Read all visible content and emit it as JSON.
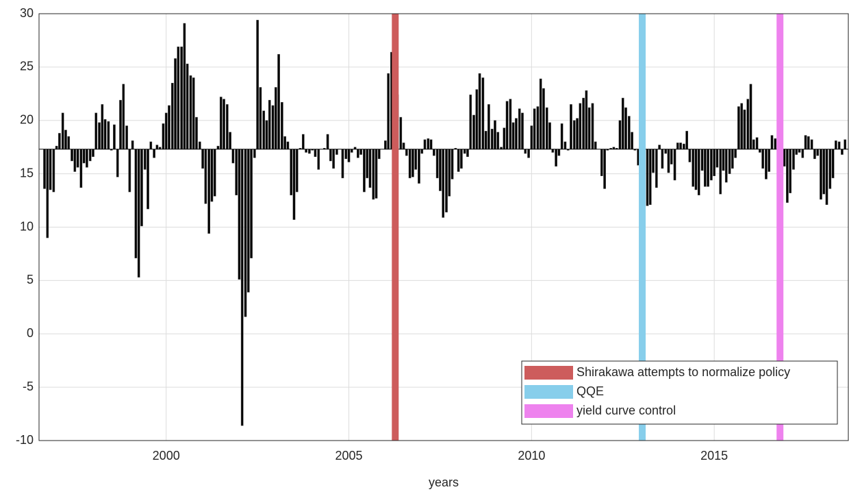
{
  "chart_data": {
    "type": "bar",
    "xlabel": "years",
    "color": "#000000",
    "baseline": 17.3,
    "xlim": [
      1996.52,
      2018.67
    ],
    "xticks": [
      2000,
      2005,
      2010,
      2015
    ],
    "ylim": [
      -10,
      30
    ],
    "yticks": [
      -10,
      -5,
      0,
      5,
      10,
      15,
      20,
      25,
      30
    ],
    "grid": true,
    "legend": "lower right",
    "bands": [
      {
        "name": "Shirakawa attempts to normalize policy",
        "color": "#cd5c5c",
        "x": 2006.27
      },
      {
        "name": "QQE",
        "color": "#87ceeb",
        "x": 2013.03
      },
      {
        "name": "yield curve control",
        "color": "#ee82ee",
        "x": 2016.8
      }
    ],
    "x": [
      1996.67,
      1996.75,
      1996.83,
      1996.92,
      1997,
      1997.08,
      1997.17,
      1997.25,
      1997.33,
      1997.42,
      1997.5,
      1997.58,
      1997.67,
      1997.75,
      1997.83,
      1997.92,
      1998,
      1998.08,
      1998.17,
      1998.25,
      1998.33,
      1998.42,
      1998.5,
      1998.58,
      1998.67,
      1998.75,
      1998.83,
      1998.92,
      1999,
      1999.08,
      1999.17,
      1999.25,
      1999.33,
      1999.42,
      1999.5,
      1999.58,
      1999.67,
      1999.75,
      1999.83,
      1999.92,
      2000,
      2000.08,
      2000.17,
      2000.25,
      2000.33,
      2000.42,
      2000.5,
      2000.58,
      2000.67,
      2000.75,
      2000.83,
      2000.92,
      2001,
      2001.08,
      2001.17,
      2001.25,
      2001.33,
      2001.42,
      2001.5,
      2001.58,
      2001.67,
      2001.75,
      2001.83,
      2001.92,
      2002,
      2002.08,
      2002.17,
      2002.25,
      2002.33,
      2002.42,
      2002.5,
      2002.58,
      2002.67,
      2002.75,
      2002.83,
      2002.92,
      2003,
      2003.08,
      2003.17,
      2003.25,
      2003.33,
      2003.42,
      2003.5,
      2003.58,
      2003.67,
      2003.75,
      2003.83,
      2003.92,
      2004,
      2004.08,
      2004.17,
      2004.25,
      2004.33,
      2004.42,
      2004.5,
      2004.58,
      2004.67,
      2004.75,
      2004.83,
      2004.92,
      2005,
      2005.08,
      2005.17,
      2005.25,
      2005.33,
      2005.42,
      2005.5,
      2005.58,
      2005.67,
      2005.75,
      2005.83,
      2005.92,
      2006,
      2006.08,
      2006.17,
      2006.25,
      2006.33,
      2006.42,
      2006.5,
      2006.58,
      2006.67,
      2006.75,
      2006.83,
      2006.92,
      2007,
      2007.08,
      2007.17,
      2007.25,
      2007.33,
      2007.42,
      2007.5,
      2007.58,
      2007.67,
      2007.75,
      2007.83,
      2007.92,
      2008,
      2008.08,
      2008.17,
      2008.25,
      2008.33,
      2008.42,
      2008.5,
      2008.58,
      2008.67,
      2008.75,
      2008.83,
      2008.92,
      2009,
      2009.08,
      2009.17,
      2009.25,
      2009.33,
      2009.42,
      2009.5,
      2009.58,
      2009.67,
      2009.75,
      2009.83,
      2009.92,
      2010,
      2010.08,
      2010.17,
      2010.25,
      2010.33,
      2010.42,
      2010.5,
      2010.58,
      2010.67,
      2010.75,
      2010.83,
      2010.92,
      2011,
      2011.08,
      2011.17,
      2011.25,
      2011.33,
      2011.42,
      2011.5,
      2011.58,
      2011.67,
      2011.75,
      2011.83,
      2011.92,
      2012,
      2012.08,
      2012.17,
      2012.25,
      2012.33,
      2012.42,
      2012.5,
      2012.58,
      2012.67,
      2012.75,
      2012.83,
      2012.92,
      2013,
      2013.08,
      2013.17,
      2013.25,
      2013.33,
      2013.42,
      2013.5,
      2013.58,
      2013.67,
      2013.75,
      2013.83,
      2013.92,
      2014,
      2014.08,
      2014.17,
      2014.25,
      2014.33,
      2014.42,
      2014.5,
      2014.58,
      2014.67,
      2014.75,
      2014.83,
      2014.92,
      2015,
      2015.08,
      2015.17,
      2015.25,
      2015.33,
      2015.42,
      2015.5,
      2015.58,
      2015.67,
      2015.75,
      2015.83,
      2015.92,
      2016,
      2016.08,
      2016.17,
      2016.25,
      2016.33,
      2016.42,
      2016.5,
      2016.58,
      2016.67,
      2016.75,
      2016.83,
      2016.92,
      2017,
      2017.08,
      2017.17,
      2017.25,
      2017.33,
      2017.42,
      2017.5,
      2017.58,
      2017.67,
      2017.75,
      2017.83,
      2017.92,
      2018,
      2018.08,
      2018.17,
      2018.25,
      2018.33,
      2018.42,
      2018.5,
      2018.58
    ],
    "values": [
      13.6,
      9.0,
      13.5,
      13.3,
      17.6,
      18.8,
      20.7,
      19.1,
      18.5,
      16.2,
      15.2,
      15.6,
      13.7,
      16.0,
      15.6,
      16.2,
      16.6,
      20.7,
      19.8,
      21.5,
      20.1,
      19.9,
      17.2,
      19.6,
      14.7,
      21.9,
      23.4,
      19.5,
      13.3,
      18.1,
      7.1,
      5.3,
      10.1,
      15.4,
      11.7,
      18.0,
      16.5,
      17.7,
      17.5,
      19.7,
      20.7,
      21.4,
      23.5,
      25.8,
      26.9,
      26.9,
      29.1,
      25.3,
      24.2,
      24.0,
      20.3,
      18.0,
      15.5,
      12.2,
      9.4,
      12.4,
      12.9,
      17.6,
      22.2,
      22.0,
      21.5,
      18.9,
      16.0,
      13.0,
      5.1,
      -8.6,
      1.6,
      3.9,
      7.1,
      16.5,
      29.4,
      23.1,
      20.9,
      20.0,
      21.9,
      21.4,
      23.1,
      26.2,
      21.7,
      18.5,
      18.0,
      13.0,
      10.7,
      13.3,
      17.4,
      18.7,
      17.0,
      16.9,
      17.2,
      16.6,
      15.4,
      17.3,
      17.4,
      18.7,
      16.2,
      15.5,
      16.8,
      17.3,
      14.6,
      16.4,
      16.1,
      17.0,
      17.5,
      16.5,
      16.8,
      13.3,
      14.6,
      13.7,
      12.6,
      12.7,
      16.4,
      17.3,
      18.1,
      24.4,
      26.4,
      25.4,
      22.4,
      20.3,
      17.9,
      16.7,
      14.6,
      14.7,
      15.4,
      14.1,
      16.9,
      18.2,
      18.3,
      18.2,
      16.7,
      14.6,
      13.4,
      10.9,
      11.4,
      12.9,
      14.5,
      17.4,
      15.2,
      15.5,
      16.9,
      16.6,
      22.4,
      20.5,
      22.9,
      24.4,
      24.0,
      19.0,
      21.5,
      19.2,
      20.0,
      18.9,
      17.5,
      19.3,
      21.8,
      22.0,
      19.8,
      20.2,
      21.1,
      20.7,
      16.9,
      16.5,
      19.5,
      21.1,
      21.3,
      23.9,
      23.0,
      21.2,
      19.8,
      17.0,
      15.7,
      16.7,
      19.7,
      18.0,
      17.2,
      21.5,
      20.0,
      20.2,
      21.6,
      22.1,
      22.8,
      21.2,
      21.6,
      18.0,
      17.3,
      14.8,
      13.6,
      17.2,
      17.4,
      17.5,
      17.4,
      20.0,
      22.1,
      21.2,
      20.4,
      18.9,
      17.2,
      15.8,
      14.7,
      11.0,
      12.0,
      12.1,
      15.1,
      13.7,
      17.7,
      15.5,
      16.9,
      15.1,
      15.9,
      14.4,
      17.9,
      17.9,
      17.8,
      19.0,
      16.1,
      13.8,
      13.5,
      13.0,
      15.3,
      13.8,
      13.8,
      14.4,
      14.8,
      15.6,
      13.1,
      15.3,
      14.2,
      15.0,
      15.5,
      16.5,
      21.3,
      21.6,
      21.0,
      22.0,
      23.4,
      18.2,
      18.4,
      17.0,
      15.5,
      14.5,
      15.2,
      18.6,
      18.3,
      16.4,
      16.0,
      15.7,
      12.3,
      13.2,
      15.4,
      16.8,
      17.0,
      16.5,
      18.6,
      18.5,
      18.2,
      16.4,
      16.7,
      12.6,
      13.1,
      12.1,
      13.6,
      14.6,
      18.1,
      18.0,
      16.8,
      18.2
    ]
  }
}
